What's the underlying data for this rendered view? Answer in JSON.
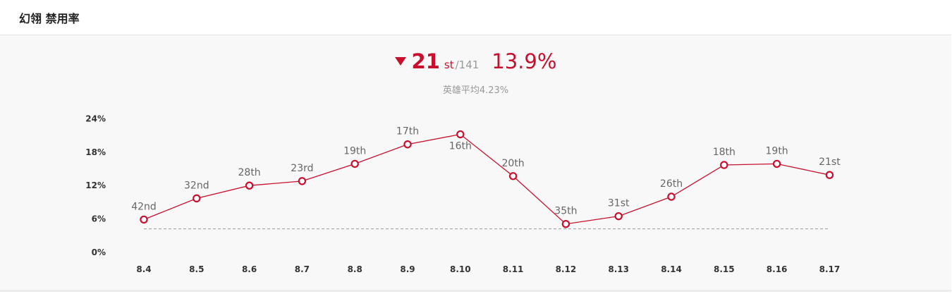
{
  "header": {
    "title": "幻翎 禁用率"
  },
  "summary": {
    "trend_icon": "down-triangle-icon",
    "rank": "21",
    "rank_suffix": "st",
    "rank_total": "/141",
    "rate": "13.9%",
    "average_text": "英雄平均4.23%"
  },
  "colors": {
    "accent": "#c8102e",
    "muted": "#999999",
    "average_line": "#999999"
  },
  "chart_data": {
    "type": "line",
    "categories": [
      "8.4",
      "8.5",
      "8.6",
      "8.7",
      "8.8",
      "8.9",
      "8.10",
      "8.11",
      "8.12",
      "8.13",
      "8.14",
      "8.15",
      "8.16",
      "8.17"
    ],
    "series": [
      {
        "values": [
          5.9,
          9.7,
          12.0,
          12.8,
          15.9,
          19.4,
          21.2,
          13.7,
          5.1,
          6.5,
          10.0,
          15.7,
          15.9,
          13.9
        ],
        "labels": [
          "42nd",
          "32nd",
          "28th",
          "23rd",
          "19th",
          "17th",
          "16th",
          "20th",
          "35th",
          "31st",
          "26th",
          "18th",
          "19th",
          "21st"
        ]
      }
    ],
    "average": 4.23,
    "yticks": [
      "0%",
      "6%",
      "12%",
      "18%",
      "24%"
    ],
    "ytick_values": [
      0,
      6,
      12,
      18,
      24
    ],
    "ylim": [
      0,
      24
    ],
    "grid": false,
    "xlabel": "",
    "ylabel": ""
  }
}
